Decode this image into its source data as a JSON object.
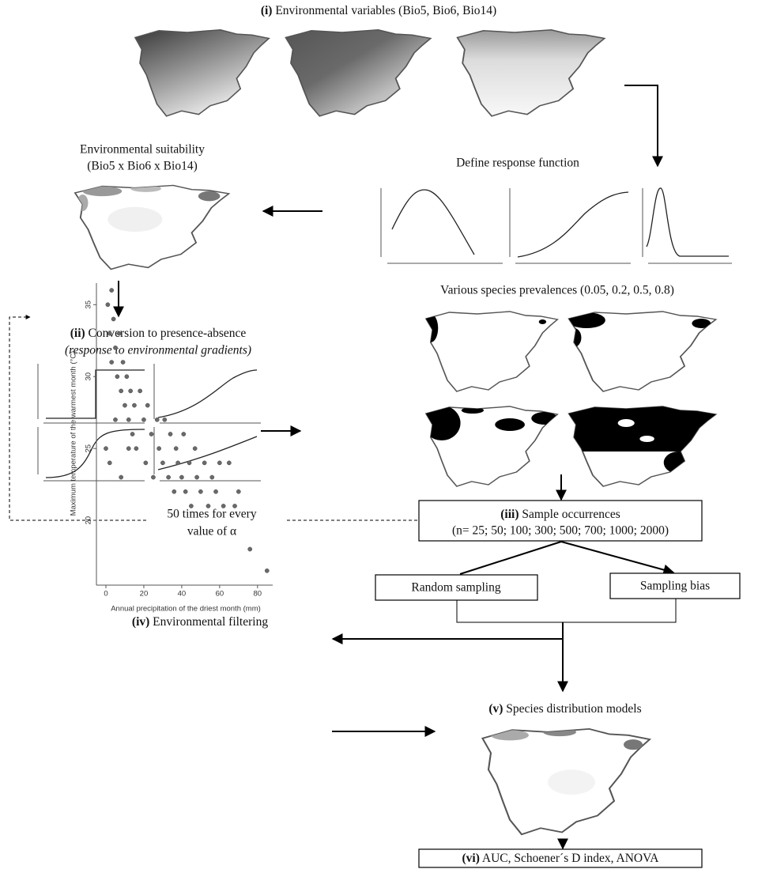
{
  "step_i": {
    "label": "(i)",
    "text": "Environmental variables (Bio5, Bio6, Bio14)"
  },
  "suitability": {
    "lines": [
      "Environmental suitability",
      "(Bio5 x Bio6 x Bio14)"
    ]
  },
  "response": {
    "text": "Define response function"
  },
  "step_ii": {
    "label": "(ii)",
    "text": "Conversion to presence-absence",
    "subtitle": "(response to environmental gradients)"
  },
  "prevalences": {
    "text": "Various species prevalences (0.05, 0.2, 0.5, 0.8)"
  },
  "loop": {
    "lines": [
      "50 times for every",
      "value of α"
    ]
  },
  "step_iii": {
    "label": "(iii)",
    "text": "Sample occurrences",
    "detail": "(n= 25; 50; 100; 300; 500; 700; 1000; 2000)"
  },
  "sampling": {
    "random": "Random sampling",
    "bias": "Sampling bias"
  },
  "step_iv": {
    "label": "(iv)",
    "text": "Environmental filtering"
  },
  "scatter": {
    "x_label": "Annual precipitation of the driest month (mm)",
    "y_label": "Maximum temperature of the warmest month (°C)",
    "xlim": [
      -5,
      88
    ],
    "ylim": [
      15.5,
      36.5
    ],
    "xticks": [
      0,
      20,
      40,
      60,
      80
    ],
    "yticks": [
      20,
      25,
      30,
      35
    ],
    "color": "#6a6a6a",
    "x": [
      1,
      2,
      3,
      3,
      4,
      5,
      6,
      7,
      8,
      9,
      10,
      11,
      12,
      13,
      14,
      15,
      16,
      18,
      20,
      21,
      22,
      24,
      25,
      27,
      28,
      30,
      31,
      33,
      34,
      36,
      37,
      38,
      40,
      41,
      42,
      44,
      45,
      47,
      48,
      50,
      52,
      54,
      56,
      58,
      60,
      62,
      65,
      68,
      70,
      76,
      85,
      0,
      2,
      5,
      8,
      12
    ],
    "y": [
      35,
      33,
      36,
      31,
      34,
      32,
      30,
      33,
      29,
      31,
      28,
      30,
      27,
      29,
      26,
      28,
      25,
      29,
      27,
      24,
      28,
      26,
      23,
      27,
      25,
      24,
      27,
      23,
      26,
      22,
      25,
      24,
      23,
      26,
      22,
      24,
      21,
      25,
      23,
      22,
      24,
      21,
      23,
      22,
      24,
      21,
      24,
      21,
      22,
      18,
      16.5,
      25,
      24,
      27,
      23,
      25
    ]
  },
  "step_v": {
    "label": "(v)",
    "text": "Species distribution models"
  },
  "step_vi": {
    "label": "(vi)",
    "text": "AUC, Schoener´s D index, ANOVA"
  }
}
